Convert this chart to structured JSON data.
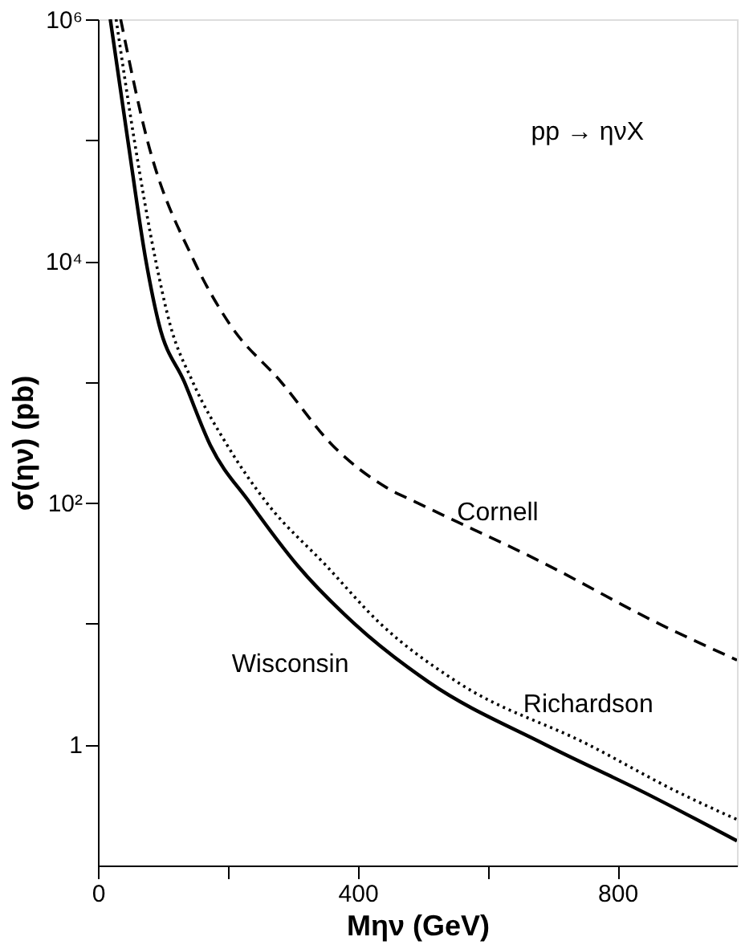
{
  "chart_data": {
    "type": "line",
    "xlabel": "Mην (GeV)",
    "ylabel": "σ(ην)  (pb)",
    "log": "y",
    "xlim": [
      0,
      984
    ],
    "ylim": [
      0.1,
      1000000
    ],
    "xticks": [
      0,
      {
        "value": 200,
        "label": null
      },
      400,
      {
        "value": 600,
        "label": null
      },
      800
    ],
    "yticks": [
      {
        "value": 1,
        "label": "1"
      },
      {
        "value": 10,
        "label": null
      },
      {
        "value": 100,
        "label": "10²"
      },
      {
        "value": 1000,
        "label": null
      },
      {
        "value": 10000,
        "label": "10⁴"
      },
      {
        "value": 100000,
        "label": null
      },
      {
        "value": 1000000,
        "label": "10⁶"
      }
    ],
    "grid": false,
    "marker": "none",
    "annotations": [
      "pp → ηνX"
    ],
    "series": [
      {
        "name": "Cornell",
        "color": "#000000",
        "line_style": "dashed",
        "x": [
          35,
          76,
          148,
          203,
          282,
          361,
          444,
          492,
          685,
          864,
          984
        ],
        "values": [
          1000000,
          100000,
          10000,
          3000,
          1000,
          300,
          134,
          100,
          32,
          10,
          5
        ]
      },
      {
        "name": "Wisconsin",
        "color": "#000000",
        "line_style": "solid",
        "x": [
          19,
          46,
          74,
          94,
          133,
          173,
          234,
          308,
          395,
          509,
          689,
          842,
          984
        ],
        "values": [
          1000000,
          100000,
          10000,
          3000,
          1000,
          300,
          100,
          30,
          10,
          3.3,
          1,
          0.4,
          0.16
        ]
      },
      {
        "name": "Richardson",
        "color": "#000000",
        "line_style": "dotted",
        "x": [
          28,
          56,
          89,
          111,
          146,
          199,
          260,
          352,
          435,
          553,
          755,
          895,
          984
        ],
        "values": [
          1000000,
          100000,
          10000,
          3000,
          1000,
          300,
          100,
          30,
          10,
          3.3,
          1,
          0.4,
          0.24
        ]
      }
    ]
  }
}
